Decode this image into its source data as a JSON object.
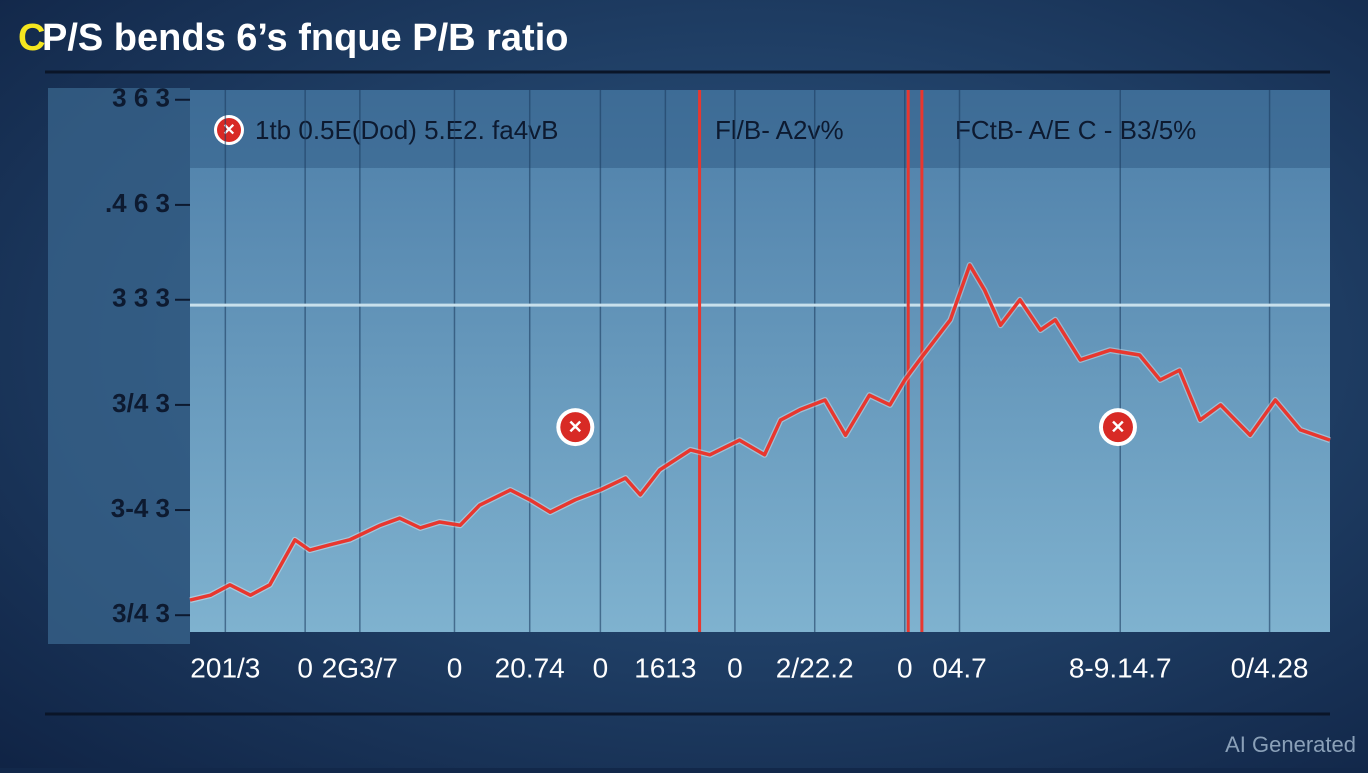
{
  "chart_data": {
    "type": "line",
    "title_prefix": "C",
    "title": "P/S bends 6’s fnque P/B ratio",
    "annotations": [
      "1tb 0.5E(Dod) 5.E2. fa4vB",
      "Fl/B- A2v%",
      "FCtB- A/E C - B3/5%"
    ],
    "watermark": "AI Generated",
    "xlim": [
      0,
      100
    ],
    "ylim": [
      0,
      100
    ],
    "xticks": [
      {
        "value": 3.1,
        "label": "201/3"
      },
      {
        "value": 10.1,
        "label": "0"
      },
      {
        "value": 14.9,
        "label": "2G3/7"
      },
      {
        "value": 23.2,
        "label": "0"
      },
      {
        "value": 29.8,
        "label": "20.74"
      },
      {
        "value": 36,
        "label": "0"
      },
      {
        "value": 41.7,
        "label": "1613"
      },
      {
        "value": 47.8,
        "label": "0"
      },
      {
        "value": 54.8,
        "label": "2/22.2"
      },
      {
        "value": 62.7,
        "label": "0"
      },
      {
        "value": 67.5,
        "label": "04.7"
      },
      {
        "value": 81.6,
        "label": "8-9.14.7"
      },
      {
        "value": 94.7,
        "label": "0/4.28"
      }
    ],
    "yticks": [
      {
        "value": 3.1,
        "label": "3/4 3"
      },
      {
        "value": 22.5,
        "label": "3-4 3"
      },
      {
        "value": 41.9,
        "label": "3/4 3"
      },
      {
        "value": 61.3,
        "label": "3 3 3"
      },
      {
        "value": 78.8,
        "label": ".4 6 3"
      },
      {
        "value": 98.2,
        "label": "3 6 3"
      }
    ],
    "grid": true,
    "reference_lines": [
      44.7,
      63.0,
      64.2
    ],
    "reference_color": "#e8372f",
    "hline": 60.3,
    "markers": [
      {
        "x": 33.8,
        "y": 37.8
      },
      {
        "x": 81.4,
        "y": 37.8
      }
    ],
    "series": [
      {
        "color": "#e8372f",
        "x": [
          0,
          1.8,
          3.5,
          5.3,
          7.0,
          9.2,
          10.5,
          12.3,
          14.0,
          16.7,
          18.4,
          20.2,
          21.9,
          23.7,
          25.4,
          28.1,
          29.8,
          31.6,
          33.8,
          36.0,
          38.2,
          39.5,
          41.2,
          43.9,
          45.6,
          48.2,
          50.4,
          51.8,
          53.5,
          55.7,
          57.5,
          59.6,
          61.4,
          62.7,
          64.0,
          66.7,
          68.4,
          69.7,
          71.1,
          72.8,
          74.6,
          75.9,
          78.1,
          80.7,
          83.3,
          85.1,
          86.8,
          88.6,
          90.4,
          93.0,
          95.2,
          97.4,
          100
        ],
        "values": [
          5.9,
          6.8,
          8.7,
          6.8,
          8.7,
          17.0,
          15.1,
          16.1,
          17.0,
          19.7,
          21.0,
          19.2,
          20.3,
          19.7,
          23.4,
          26.2,
          24.4,
          22.1,
          24.4,
          26.2,
          28.4,
          25.3,
          29.9,
          33.6,
          32.7,
          35.4,
          32.7,
          39.1,
          41.0,
          42.8,
          36.3,
          43.7,
          41.9,
          46.5,
          50.2,
          57.6,
          67.7,
          63.1,
          56.6,
          61.3,
          55.7,
          57.6,
          50.2,
          52.0,
          51.1,
          46.5,
          48.3,
          39.1,
          41.9,
          36.3,
          42.8,
          37.3,
          35.4
        ]
      }
    ]
  }
}
